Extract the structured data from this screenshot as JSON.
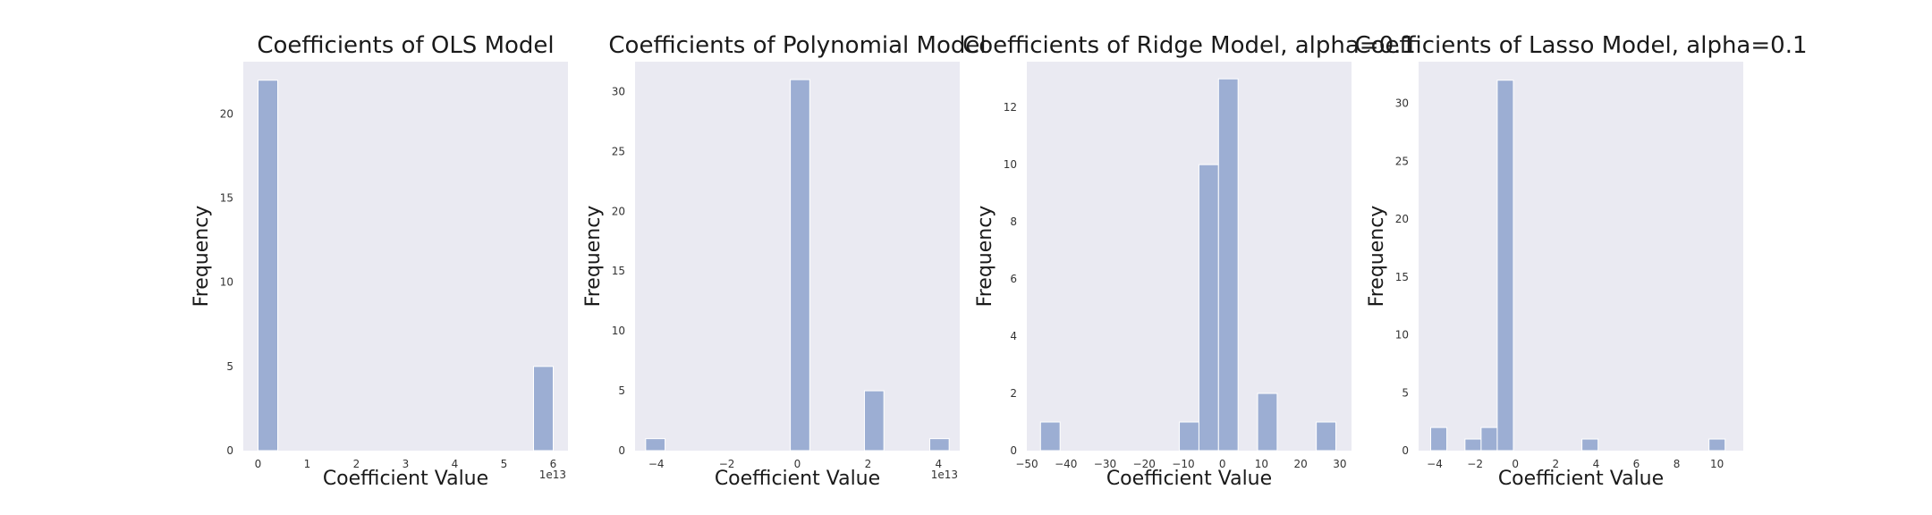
{
  "colors": {
    "plot_bg": "#EAEAF2",
    "bar": "#9CAED3",
    "bar_edge": "#FFFFFF"
  },
  "chart_data": [
    {
      "type": "bar",
      "title": "Coefficients of OLS Model",
      "xlabel": "Coefficient Value",
      "ylabel": "Frequency",
      "x_offset_text": "1e13",
      "xlim": [
        -0.3,
        6.3
      ],
      "ylim": [
        0,
        23.1
      ],
      "xticks": [
        0,
        1,
        2,
        3,
        4,
        5,
        6
      ],
      "xtick_labels": [
        "0",
        "1",
        "2",
        "3",
        "4",
        "5",
        "6"
      ],
      "yticks": [
        0,
        5,
        10,
        15,
        20
      ],
      "ytick_labels": [
        "0",
        "5",
        "10",
        "15",
        "20"
      ],
      "bins": [
        {
          "start": 0.0,
          "end": 0.4,
          "count": 22
        },
        {
          "start": 5.6,
          "end": 6.0,
          "count": 5
        }
      ]
    },
    {
      "type": "bar",
      "title": "Coefficients of Polynomial Model",
      "xlabel": "Coefficient Value",
      "ylabel": "Frequency",
      "x_offset_text": "1e13",
      "xlim": [
        -4.6,
        4.6
      ],
      "ylim": [
        0,
        32.5
      ],
      "xticks": [
        -4,
        -2,
        0,
        2,
        4
      ],
      "xtick_labels": [
        "−4",
        "−2",
        "0",
        "2",
        "4"
      ],
      "yticks": [
        0,
        5,
        10,
        15,
        20,
        25,
        30
      ],
      "ytick_labels": [
        "0",
        "5",
        "10",
        "15",
        "20",
        "25",
        "30"
      ],
      "bins": [
        {
          "start": -4.3,
          "end": -3.75,
          "count": 1
        },
        {
          "start": -0.2,
          "end": 0.35,
          "count": 31
        },
        {
          "start": 1.9,
          "end": 2.45,
          "count": 5
        },
        {
          "start": 3.75,
          "end": 4.3,
          "count": 1
        }
      ]
    },
    {
      "type": "bar",
      "title": "Coefficients of Ridge Model, alpha=0.1",
      "xlabel": "Coefficient Value",
      "ylabel": "Frequency",
      "x_offset_text": "",
      "xlim": [
        -50,
        33
      ],
      "ylim": [
        0,
        13.6
      ],
      "xticks": [
        -50,
        -40,
        -30,
        -20,
        -10,
        0,
        10,
        20,
        30
      ],
      "xtick_labels": [
        "−50",
        "−40",
        "−30",
        "−20",
        "−10",
        "0",
        "10",
        "20",
        "30"
      ],
      "yticks": [
        0,
        2,
        4,
        6,
        8,
        10,
        12
      ],
      "ytick_labels": [
        "0",
        "2",
        "4",
        "6",
        "8",
        "10",
        "12"
      ],
      "bins": [
        {
          "start": -46.5,
          "end": -41.5,
          "count": 1
        },
        {
          "start": -11.0,
          "end": -6.0,
          "count": 1
        },
        {
          "start": -6.0,
          "end": -1.0,
          "count": 10
        },
        {
          "start": -1.0,
          "end": 4.0,
          "count": 13
        },
        {
          "start": 9.0,
          "end": 14.0,
          "count": 2
        },
        {
          "start": 24.0,
          "end": 29.0,
          "count": 1
        }
      ]
    },
    {
      "type": "bar",
      "title": "Coefficients of Lasso Model, alpha=0.1",
      "xlabel": "Coefficient Value",
      "ylabel": "Frequency",
      "x_offset_text": "",
      "xlim": [
        -4.8,
        11.3
      ],
      "ylim": [
        0,
        33.6
      ],
      "xticks": [
        -4,
        -2,
        0,
        2,
        4,
        6,
        8,
        10
      ],
      "xtick_labels": [
        "−4",
        "−2",
        "0",
        "2",
        "4",
        "6",
        "8",
        "10"
      ],
      "yticks": [
        0,
        5,
        10,
        15,
        20,
        25,
        30
      ],
      "ytick_labels": [
        "0",
        "5",
        "10",
        "15",
        "20",
        "25",
        "30"
      ],
      "bins": [
        {
          "start": -4.2,
          "end": -3.4,
          "count": 2
        },
        {
          "start": -2.5,
          "end": -1.7,
          "count": 1
        },
        {
          "start": -1.7,
          "end": -0.9,
          "count": 2
        },
        {
          "start": -0.9,
          "end": -0.1,
          "count": 32
        },
        {
          "start": 3.3,
          "end": 4.1,
          "count": 1
        },
        {
          "start": 9.6,
          "end": 10.4,
          "count": 1
        }
      ]
    }
  ]
}
